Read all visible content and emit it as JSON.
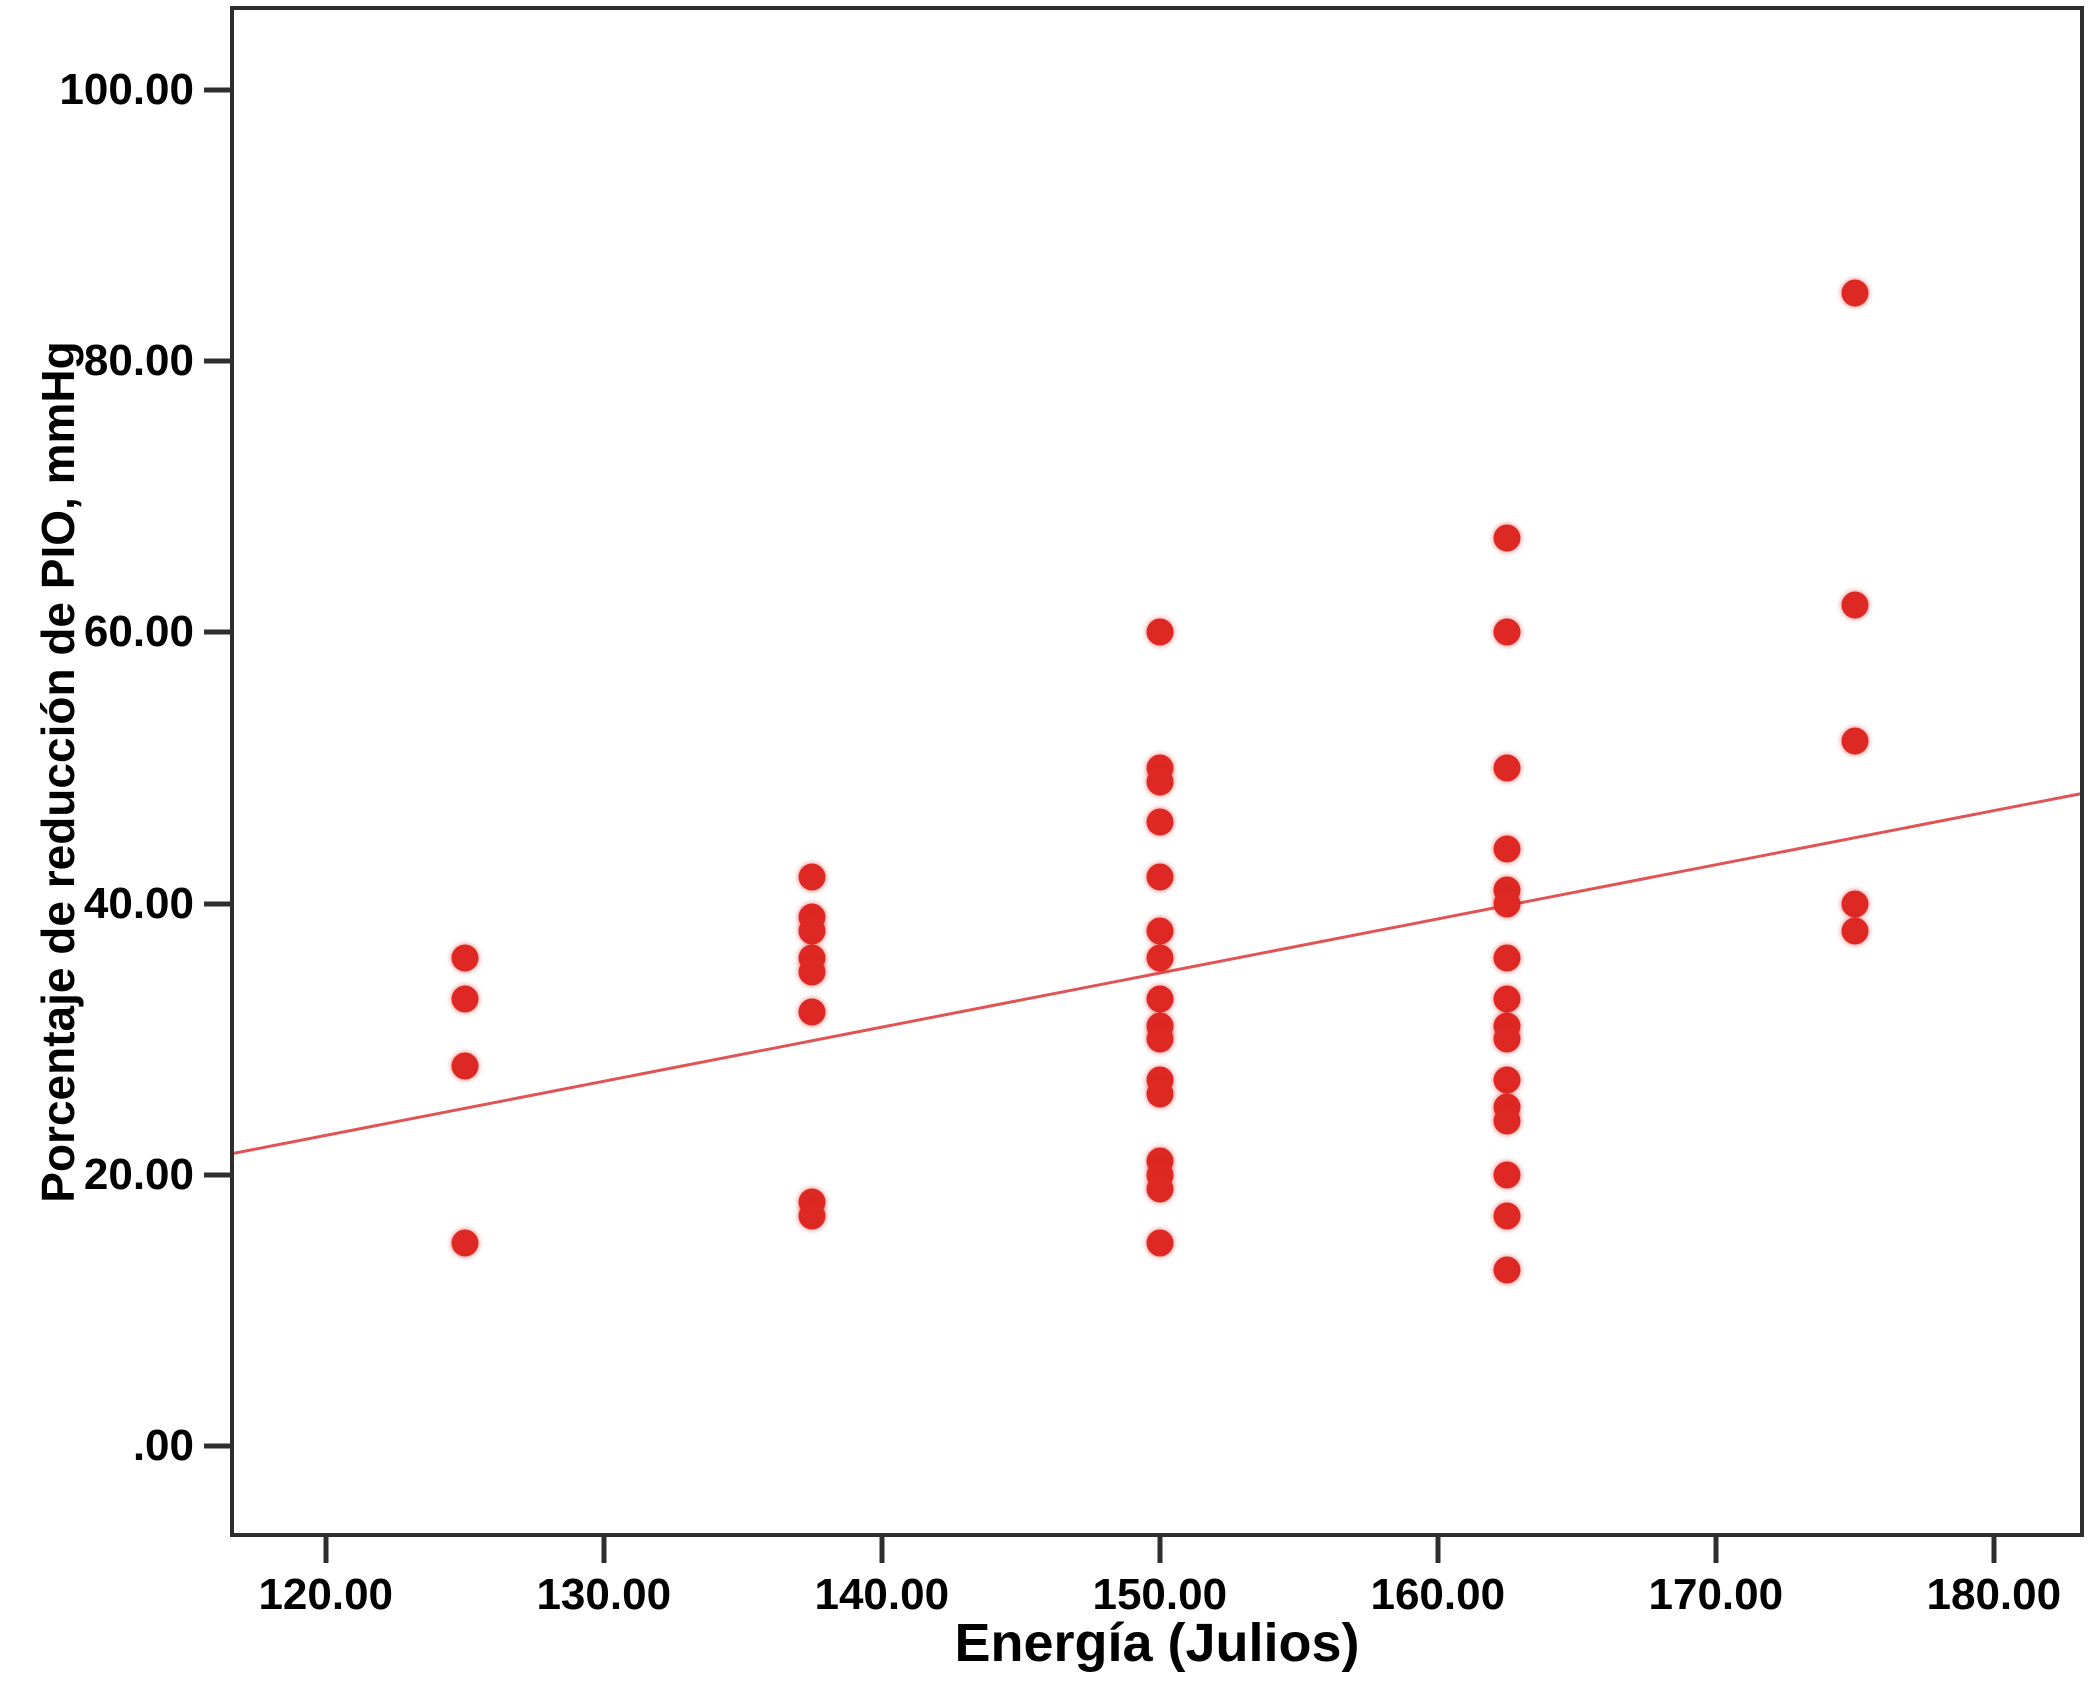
{
  "figure": {
    "background_color": "#ffffff",
    "axis_color": "#2e2e2e",
    "point_color": "#dd2823",
    "trend_color": "#e05454"
  },
  "chart_data": {
    "type": "scatter",
    "title": "",
    "xlabel": "Energía (Julios)",
    "ylabel": "Porcentaje de reducción de PIO, mmHg",
    "xlim": [
      116.7,
      183.1
    ],
    "ylim": [
      -6.4,
      105.9
    ],
    "grid": false,
    "legend": "none",
    "x_ticks": [
      {
        "value": 120,
        "label": "120.00"
      },
      {
        "value": 130,
        "label": "130.00"
      },
      {
        "value": 140,
        "label": "140.00"
      },
      {
        "value": 150,
        "label": "150.00"
      },
      {
        "value": 160,
        "label": "160.00"
      },
      {
        "value": 170,
        "label": "170.00"
      },
      {
        "value": 180,
        "label": "180.00"
      }
    ],
    "y_ticks": [
      {
        "value": 0,
        "label": ".00"
      },
      {
        "value": 20,
        "label": "20.00"
      },
      {
        "value": 40,
        "label": "40.00"
      },
      {
        "value": 60,
        "label": "60.00"
      },
      {
        "value": 80,
        "label": "80.00"
      },
      {
        "value": 100,
        "label": "100.00"
      }
    ],
    "points": [
      {
        "x": 125,
        "y": 36
      },
      {
        "x": 125,
        "y": 33
      },
      {
        "x": 125,
        "y": 28
      },
      {
        "x": 125,
        "y": 15
      },
      {
        "x": 137.5,
        "y": 42
      },
      {
        "x": 137.5,
        "y": 39
      },
      {
        "x": 137.5,
        "y": 38
      },
      {
        "x": 137.5,
        "y": 36
      },
      {
        "x": 137.5,
        "y": 35
      },
      {
        "x": 137.5,
        "y": 32
      },
      {
        "x": 137.5,
        "y": 18
      },
      {
        "x": 137.5,
        "y": 17
      },
      {
        "x": 150,
        "y": 60
      },
      {
        "x": 150,
        "y": 50
      },
      {
        "x": 150,
        "y": 49
      },
      {
        "x": 150,
        "y": 46
      },
      {
        "x": 150,
        "y": 42
      },
      {
        "x": 150,
        "y": 38
      },
      {
        "x": 150,
        "y": 36
      },
      {
        "x": 150,
        "y": 33
      },
      {
        "x": 150,
        "y": 31
      },
      {
        "x": 150,
        "y": 30
      },
      {
        "x": 150,
        "y": 27
      },
      {
        "x": 150,
        "y": 26
      },
      {
        "x": 150,
        "y": 21
      },
      {
        "x": 150,
        "y": 20
      },
      {
        "x": 150,
        "y": 19
      },
      {
        "x": 150,
        "y": 15
      },
      {
        "x": 162.5,
        "y": 67
      },
      {
        "x": 162.5,
        "y": 60
      },
      {
        "x": 162.5,
        "y": 50
      },
      {
        "x": 162.5,
        "y": 44
      },
      {
        "x": 162.5,
        "y": 41
      },
      {
        "x": 162.5,
        "y": 40
      },
      {
        "x": 162.5,
        "y": 36
      },
      {
        "x": 162.5,
        "y": 33
      },
      {
        "x": 162.5,
        "y": 31
      },
      {
        "x": 162.5,
        "y": 30
      },
      {
        "x": 162.5,
        "y": 27
      },
      {
        "x": 162.5,
        "y": 25
      },
      {
        "x": 162.5,
        "y": 24
      },
      {
        "x": 162.5,
        "y": 20
      },
      {
        "x": 162.5,
        "y": 17
      },
      {
        "x": 162.5,
        "y": 13
      },
      {
        "x": 175,
        "y": 85
      },
      {
        "x": 175,
        "y": 62
      },
      {
        "x": 175,
        "y": 52
      },
      {
        "x": 175,
        "y": 40
      },
      {
        "x": 175,
        "y": 38
      }
    ],
    "trend_line": {
      "x1": 116.7,
      "y1": 21.6,
      "x2": 183.1,
      "y2": 48.1
    }
  }
}
